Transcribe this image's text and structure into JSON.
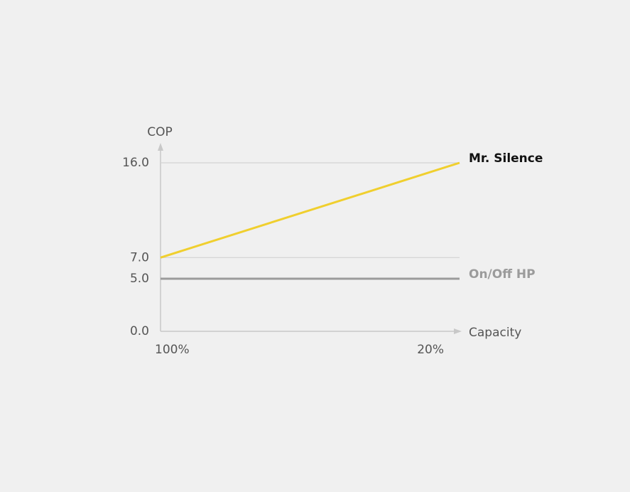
{
  "chart_data": {
    "type": "line",
    "y_label": "COP",
    "x_label": "Capacity",
    "categories": [
      "100%",
      "20%"
    ],
    "series": [
      {
        "name": "Mr. Silence",
        "color": "#f0cf2e",
        "values": [
          7,
          16
        ]
      },
      {
        "name": "On/Off HP",
        "color": "#9b9b9b",
        "values": [
          5,
          5
        ]
      }
    ],
    "ylim": [
      0,
      16
    ],
    "yticks": [
      {
        "value": 0,
        "label": "0.0"
      },
      {
        "value": 5,
        "label": "5.0"
      },
      {
        "value": 7,
        "label": "7.0"
      },
      {
        "value": 16,
        "label": "16.0"
      }
    ],
    "grid": true
  }
}
